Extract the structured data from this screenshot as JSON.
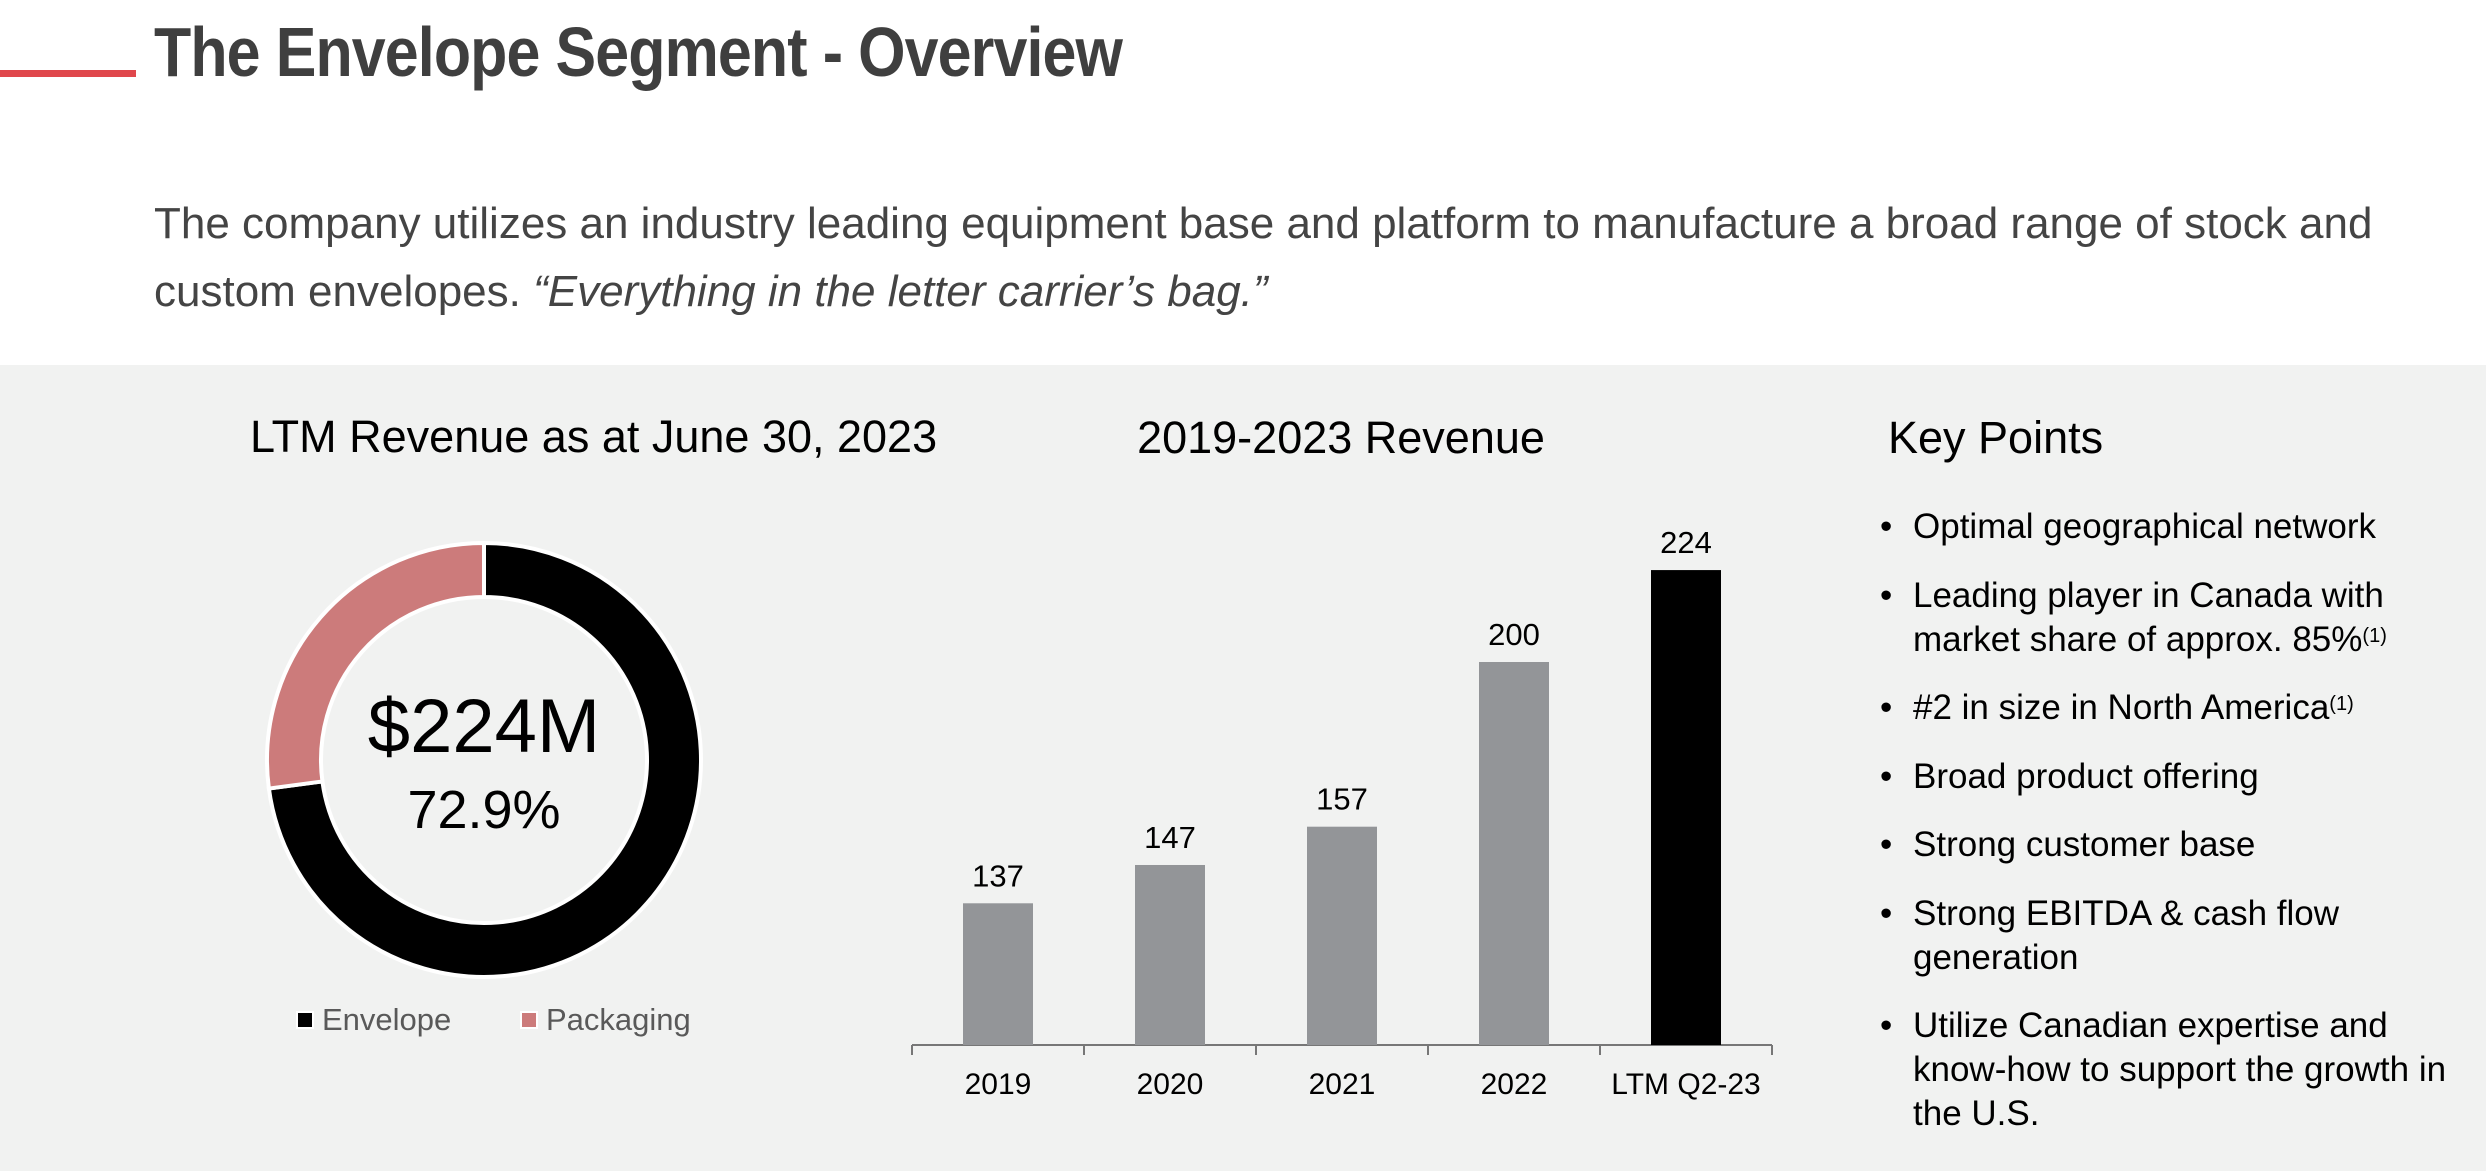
{
  "header": {
    "title": "The Envelope Segment - Overview",
    "intro": "The company utilizes an industry leading equipment base and platform to manufacture a broad range of stock and custom envelopes. ",
    "intro_quote": "“Everything in the letter carrier’s bag.”"
  },
  "colors": {
    "accent": "#e0474c",
    "envelope": "#000000",
    "packaging": "#cc7b7b",
    "bar": "#939598",
    "bar_highlight": "#000000",
    "panel": "#f1f2f1"
  },
  "chart_data": [
    {
      "type": "pie",
      "title": "LTM Revenue as at June 30, 2023",
      "center_value": "$224M",
      "center_percent": "72.9%",
      "labels": [
        "Envelope",
        "Packaging"
      ],
      "values": [
        72.9,
        27.1
      ],
      "legend": "bottom"
    },
    {
      "type": "bar",
      "title": "2019-2023 Revenue",
      "categories": [
        "2019",
        "2020",
        "2021",
        "2022",
        "LTM Q2-23"
      ],
      "values": [
        137,
        147,
        157,
        200,
        224
      ],
      "data_labels": [
        "137",
        "147",
        "157",
        "200",
        "224"
      ],
      "ylim": [
        100,
        230
      ],
      "xlabel": "",
      "ylabel": "",
      "grid": false
    }
  ],
  "key_points": {
    "title": "Key Points",
    "items": [
      {
        "text": "Optimal geographical network"
      },
      {
        "text": "Leading player in Canada with market share of approx. 85%",
        "sup": "(1)"
      },
      {
        "text": "#2 in size in North America",
        "sup": "(1)"
      },
      {
        "text": "Broad product offering"
      },
      {
        "text": "Strong customer base"
      },
      {
        "text": "Strong EBITDA & cash flow generation"
      },
      {
        "text": "Utilize Canadian expertise and know-how to support the growth in the U.S."
      }
    ]
  }
}
